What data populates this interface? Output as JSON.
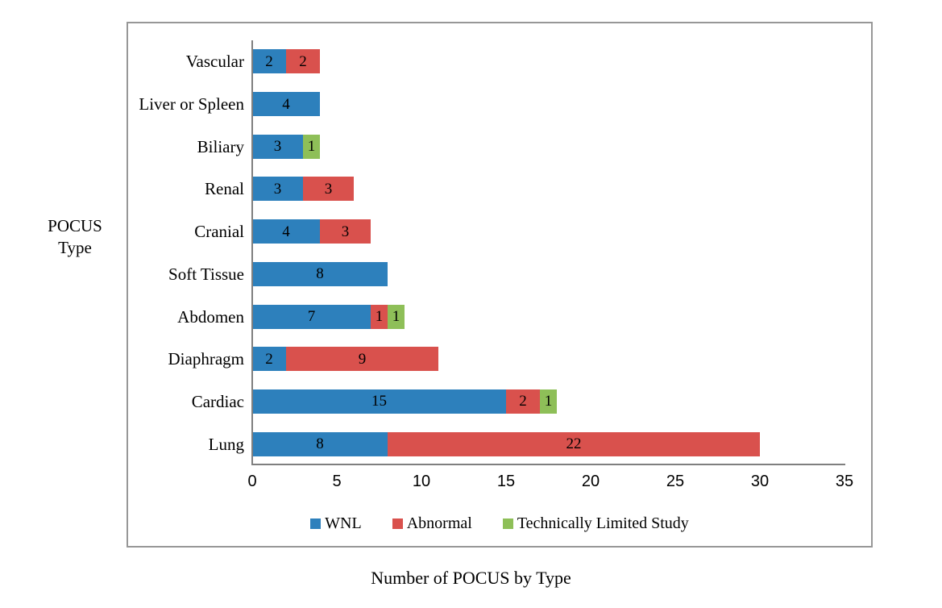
{
  "figure": {
    "y_axis_title_line1": "POCUS",
    "y_axis_title_line2": "Type",
    "caption": "Number of POCUS by Type"
  },
  "chart_data": {
    "type": "bar",
    "orientation": "horizontal",
    "stacked": true,
    "title": "Number of POCUS by Type",
    "xlabel": "Number of POCUS by Type",
    "ylabel": "POCUS Type",
    "categories_top_to_bottom": [
      "Vascular",
      "Liver or Spleen",
      "Biliary",
      "Renal",
      "Cranial",
      "Soft Tissue",
      "Abdomen",
      "Diaphragm",
      "Cardiac",
      "Lung"
    ],
    "series": [
      {
        "name": "WNL",
        "color": "#2D80BC",
        "values": [
          2,
          4,
          3,
          3,
          4,
          8,
          7,
          2,
          15,
          8
        ]
      },
      {
        "name": "Abnormal",
        "color": "#D9514D",
        "values": [
          2,
          0,
          0,
          3,
          3,
          0,
          1,
          9,
          2,
          22
        ]
      },
      {
        "name": "Technically Limited Study",
        "color": "#8EBF58",
        "values": [
          0,
          0,
          1,
          0,
          0,
          0,
          1,
          0,
          1,
          0
        ]
      }
    ],
    "x_ticks": [
      0,
      5,
      10,
      15,
      20,
      25,
      30,
      35
    ],
    "xlim": [
      0,
      35
    ],
    "value_labels_shown": true,
    "legend_position": "bottom",
    "legend_entries": [
      "WNL",
      "Abnormal",
      "Technically Limited Study"
    ],
    "grid": false,
    "axis_color": "#7f7f7f"
  }
}
